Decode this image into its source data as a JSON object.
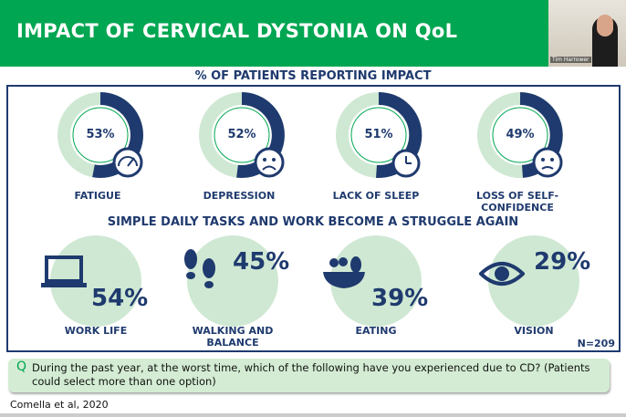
{
  "header": {
    "title": "IMPACT OF CERVICAL DYSTONIA ON QoL"
  },
  "video": {
    "participant_name": "Tim Harrower"
  },
  "subtitle": "% OF PATIENTS REPORTING IMPACT",
  "colors": {
    "green": "#00a651",
    "navy": "#1f3a6e",
    "light_green": "#cfe8d3"
  },
  "impacts": [
    {
      "value": "53%",
      "fraction": 0.53,
      "label": "FATIGUE",
      "icon": "speedometer-icon"
    },
    {
      "value": "52%",
      "fraction": 0.52,
      "label": "DEPRESSION",
      "icon": "sad-face-rain-cloud-icon"
    },
    {
      "value": "51%",
      "fraction": 0.51,
      "label": "LACK OF SLEEP",
      "icon": "alarm-clock-icon"
    },
    {
      "value": "49%",
      "fraction": 0.49,
      "label": "LOSS OF SELF-CONFIDENCE",
      "icon": "worried-face-icon"
    }
  ],
  "mid_heading": "SIMPLE DAILY TASKS AND WORK BECOME A STRUGGLE AGAIN",
  "tasks": [
    {
      "value": "54%",
      "label": "WORK LIFE",
      "icon": "laptop-icon"
    },
    {
      "value": "45%",
      "label": "WALKING AND BALANCE",
      "icon": "footprints-icon"
    },
    {
      "value": "39%",
      "label": "EATING",
      "icon": "fruit-bowl-icon"
    },
    {
      "value": "29%",
      "label": "VISION",
      "icon": "eye-icon"
    }
  ],
  "n_label": "N=209",
  "question": {
    "marker": "Q",
    "text": "During the past year, at the worst time, which of the following have you experienced due to CD? (Patients could select more than one option)"
  },
  "citation": "Comella et al, 2020"
}
